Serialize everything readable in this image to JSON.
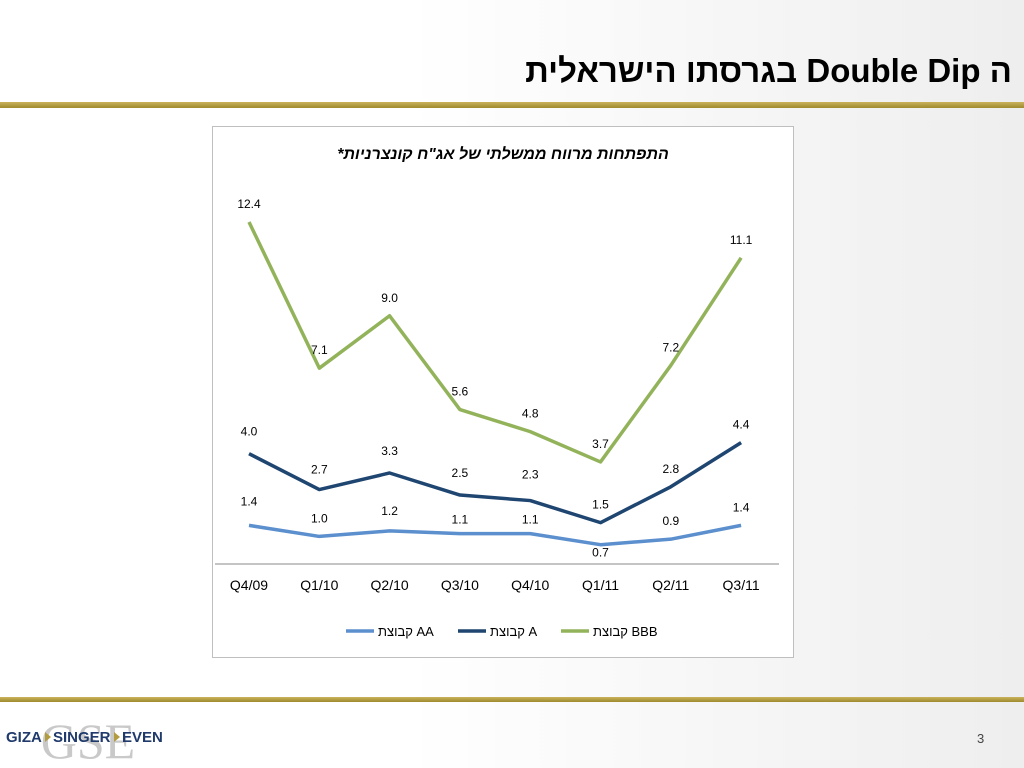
{
  "slide": {
    "title": "ה Double Dip בגרסתו הישראלית",
    "page_number": "3"
  },
  "logo": {
    "text_left": "GIZA",
    "text_mid": "SINGER",
    "text_right": "EVEN",
    "monogram": "GSE"
  },
  "colors": {
    "AA": "#5b8fcd",
    "A": "#1f4571",
    "BBB": "#93b35b",
    "gold": "#b39b3f"
  },
  "chart_data": {
    "type": "line",
    "title": "התפתחות מרווח ממשלתי של אג\"ח קונצרניות*",
    "categories": [
      "Q4/09",
      "Q1/10",
      "Q2/10",
      "Q3/10",
      "Q4/10",
      "Q1/11",
      "Q2/11",
      "Q3/11"
    ],
    "series": [
      {
        "name": "קבוצת BBB",
        "values": [
          12.4,
          7.1,
          9.0,
          5.6,
          4.8,
          3.7,
          7.2,
          11.1
        ],
        "labels": [
          "12.4",
          "7.1",
          "9.0",
          "5.6",
          "4.8",
          "3.7",
          "7.2",
          "11.1"
        ]
      },
      {
        "name": "קבוצת A",
        "values": [
          4.0,
          2.7,
          3.3,
          2.5,
          2.3,
          1.5,
          2.8,
          4.4
        ],
        "labels": [
          "4.0",
          "2.7",
          "3.3",
          "2.5",
          "2.3",
          "1.5",
          "2.8",
          "4.4"
        ]
      },
      {
        "name": "קבוצת AA",
        "values": [
          1.4,
          1.0,
          1.2,
          1.1,
          1.1,
          0.7,
          0.9,
          1.4
        ],
        "labels": [
          "1.4",
          "1.0",
          "1.2",
          "1.1",
          "1.1",
          "0.7",
          "0.9",
          "1.4"
        ]
      }
    ],
    "legend_order": [
      "קבוצת AA",
      "קבוצת A",
      "קבוצת BBB"
    ],
    "legend_position": "bottom",
    "ylim": [
      0,
      13
    ],
    "grid": false,
    "xlabel": "",
    "ylabel": ""
  }
}
